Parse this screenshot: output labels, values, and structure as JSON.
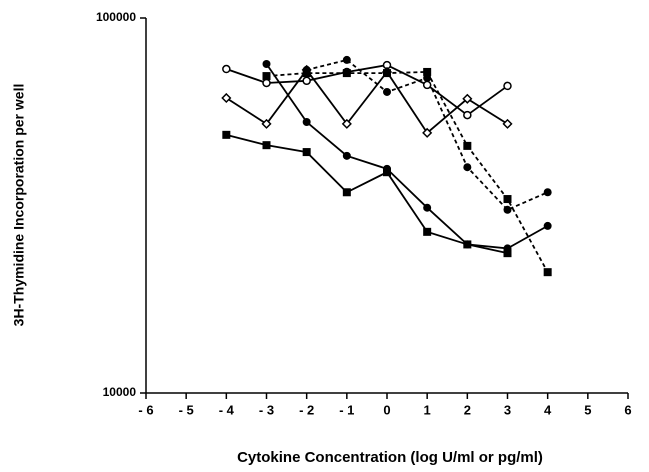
{
  "chart_data": {
    "type": "line",
    "ylabel": "3H-Thymidine  Incorporation  per  well",
    "xlabel": "Cytokine  Concentration  (log  U/ml  or  pg/ml)",
    "x": [
      -4,
      -3,
      -2,
      -1,
      0,
      1,
      2,
      3,
      4
    ],
    "series": [
      {
        "color": "#000000",
        "marker": "open-circle",
        "dashed": false,
        "values": [
          73100,
          67100,
          68000,
          71800,
          74900,
          66300,
          55100,
          65900,
          null
        ]
      },
      {
        "color": "#000000",
        "marker": "diamond",
        "dashed": false,
        "values": [
          61200,
          52200,
          72700,
          52200,
          71800,
          49400,
          60900,
          52200,
          null
        ]
      },
      {
        "color": "#000000",
        "marker": "circle",
        "dashed": false,
        "values": [
          null,
          75400,
          52800,
          42900,
          39600,
          31200,
          24900,
          24300,
          27900
        ]
      },
      {
        "color": "#000000",
        "marker": "square",
        "dashed": false,
        "values": [
          48800,
          45800,
          43900,
          34300,
          38800,
          26900,
          24900,
          23600,
          null
        ]
      },
      {
        "color": "#000000",
        "marker": "circle",
        "dashed": true,
        "values": [
          null,
          null,
          72700,
          77300,
          63500,
          69200,
          40000,
          30800,
          34300
        ]
      },
      {
        "color": "#000000",
        "marker": "square",
        "dashed": true,
        "values": [
          null,
          70000,
          71300,
          71300,
          71300,
          71800,
          45600,
          32900,
          21000
        ]
      }
    ],
    "xlim": [
      -6,
      6
    ],
    "xticks": [
      {
        "value": -6,
        "label": "- 6"
      },
      {
        "value": -5,
        "label": "- 5"
      },
      {
        "value": -4,
        "label": "- 4"
      },
      {
        "value": -3,
        "label": "- 3"
      },
      {
        "value": -2,
        "label": "- 2"
      },
      {
        "value": -1,
        "label": "- 1"
      },
      0,
      1,
      2,
      3,
      4,
      5,
      6
    ],
    "ylim": [
      10000,
      100000
    ],
    "yticks": [
      10000,
      100000
    ],
    "ylog": true
  }
}
